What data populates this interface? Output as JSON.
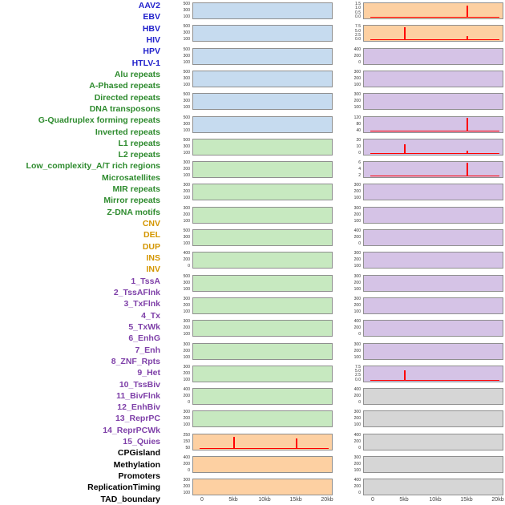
{
  "colors": {
    "virus_label": "#2222CC",
    "repeat_label": "#2E8B2E",
    "sv_label": "#D49600",
    "chromhmm_label": "#7E3FA8",
    "other_label": "#000000",
    "panel_blue": "#C6DBEF",
    "panel_green": "#C7E9C0",
    "panel_orange": "#FDD0A2",
    "panel_purple": "#D5C3E6",
    "panel_gray": "#D6D6D6",
    "panel_border": "#8F8F8F",
    "spike_red": "#FF0000",
    "axis_text": "#454545"
  },
  "track_labels": [
    {
      "text": "AAV2",
      "group": "virus"
    },
    {
      "text": "EBV",
      "group": "virus"
    },
    {
      "text": "HBV",
      "group": "virus"
    },
    {
      "text": "HIV",
      "group": "virus"
    },
    {
      "text": "HPV",
      "group": "virus"
    },
    {
      "text": "HTLV-1",
      "group": "virus"
    },
    {
      "text": "Alu repeats",
      "group": "repeat"
    },
    {
      "text": "A-Phased repeats",
      "group": "repeat"
    },
    {
      "text": "Directed repeats",
      "group": "repeat"
    },
    {
      "text": "DNA transposons",
      "group": "repeat"
    },
    {
      "text": "G-Quadruplex forming repeats",
      "group": "repeat"
    },
    {
      "text": "Inverted repeats",
      "group": "repeat"
    },
    {
      "text": "L1 repeats",
      "group": "repeat"
    },
    {
      "text": "L2 repeats",
      "group": "repeat"
    },
    {
      "text": "Low_complexity_A/T rich regions",
      "group": "repeat"
    },
    {
      "text": "Microsatellites",
      "group": "repeat"
    },
    {
      "text": "MIR repeats",
      "group": "repeat"
    },
    {
      "text": "Mirror repeats",
      "group": "repeat"
    },
    {
      "text": "Z-DNA motifs",
      "group": "repeat"
    },
    {
      "text": "CNV",
      "group": "sv"
    },
    {
      "text": "DEL",
      "group": "sv"
    },
    {
      "text": "DUP",
      "group": "sv"
    },
    {
      "text": "INS",
      "group": "sv"
    },
    {
      "text": "INV",
      "group": "sv"
    },
    {
      "text": "1_TssA",
      "group": "chromhmm"
    },
    {
      "text": "2_TssAFlnk",
      "group": "chromhmm"
    },
    {
      "text": "3_TxFlnk",
      "group": "chromhmm"
    },
    {
      "text": "4_Tx",
      "group": "chromhmm"
    },
    {
      "text": "5_TxWk",
      "group": "chromhmm"
    },
    {
      "text": "6_EnhG",
      "group": "chromhmm"
    },
    {
      "text": "7_Enh",
      "group": "chromhmm"
    },
    {
      "text": "8_ZNF_Rpts",
      "group": "chromhmm"
    },
    {
      "text": "9_Het",
      "group": "chromhmm"
    },
    {
      "text": "10_TssBiv",
      "group": "chromhmm"
    },
    {
      "text": "11_BivFlnk",
      "group": "chromhmm"
    },
    {
      "text": "12_EnhBiv",
      "group": "chromhmm"
    },
    {
      "text": "13_ReprPC",
      "group": "chromhmm"
    },
    {
      "text": "14_ReprPCWk",
      "group": "chromhmm"
    },
    {
      "text": "15_Quies",
      "group": "chromhmm"
    },
    {
      "text": "CPGisland",
      "group": "other"
    },
    {
      "text": "Methylation",
      "group": "other"
    },
    {
      "text": "Promoters",
      "group": "other"
    },
    {
      "text": "ReplicationTiming",
      "group": "other"
    },
    {
      "text": "TAD_boundary",
      "group": "other"
    }
  ],
  "chart_data": {
    "type": "area",
    "x": {
      "range_kb": [
        0,
        20
      ],
      "ticks": [
        "0",
        "5kb",
        "10kb",
        "15kb",
        "20kb"
      ],
      "tick_values_kb": [
        0,
        5,
        10,
        15,
        20
      ]
    },
    "columns": [
      {
        "id": "left",
        "panels": [
          {
            "track": "AAV2",
            "fill": "blue",
            "yticks": [
              "500",
              "300",
              "100"
            ],
            "spikes": []
          },
          {
            "track": "EBV",
            "fill": "blue",
            "yticks": [
              "500",
              "300",
              "100"
            ],
            "spikes": []
          },
          {
            "track": "HBV",
            "fill": "blue",
            "yticks": [
              "500",
              "300",
              "100"
            ],
            "spikes": []
          },
          {
            "track": "HIV",
            "fill": "blue",
            "yticks": [
              "500",
              "300",
              "100"
            ],
            "spikes": []
          },
          {
            "track": "HPV",
            "fill": "blue",
            "yticks": [
              "500",
              "300",
              "100"
            ],
            "spikes": []
          },
          {
            "track": "HTLV-1",
            "fill": "blue",
            "yticks": [
              "500",
              "300",
              "100"
            ],
            "spikes": []
          },
          {
            "track": "Alu repeats",
            "fill": "green",
            "yticks": [
              "500",
              "300",
              "100"
            ],
            "spikes": []
          },
          {
            "track": "A-Phased repeats",
            "fill": "green",
            "yticks": [
              "300",
              "200",
              "100"
            ],
            "spikes": []
          },
          {
            "track": "Directed repeats",
            "fill": "green",
            "yticks": [
              "300",
              "200",
              "100"
            ],
            "spikes": []
          },
          {
            "track": "DNA transposons",
            "fill": "green",
            "yticks": [
              "300",
              "200",
              "100"
            ],
            "spikes": []
          },
          {
            "track": "G-Quadruplex forming repeats",
            "fill": "green",
            "yticks": [
              "500",
              "300",
              "100"
            ],
            "spikes": []
          },
          {
            "track": "Inverted repeats",
            "fill": "green",
            "yticks": [
              "400",
              "200",
              "0"
            ],
            "spikes": []
          },
          {
            "track": "L1 repeats",
            "fill": "green",
            "yticks": [
              "500",
              "300",
              "100"
            ],
            "spikes": []
          },
          {
            "track": "L2 repeats",
            "fill": "green",
            "yticks": [
              "300",
              "200",
              "100"
            ],
            "spikes": []
          },
          {
            "track": "Low_complexity_A/T rich regions",
            "fill": "green",
            "yticks": [
              "300",
              "200",
              "100"
            ],
            "spikes": []
          },
          {
            "track": "Microsatellites",
            "fill": "green",
            "yticks": [
              "300",
              "200",
              "100"
            ],
            "spikes": []
          },
          {
            "track": "MIR repeats",
            "fill": "green",
            "yticks": [
              "300",
              "200",
              "100"
            ],
            "spikes": []
          },
          {
            "track": "Mirror repeats",
            "fill": "green",
            "yticks": [
              "400",
              "200",
              "0"
            ],
            "spikes": []
          },
          {
            "track": "Z-DNA motifs",
            "fill": "green",
            "yticks": [
              "300",
              "200",
              "100"
            ],
            "spikes": []
          },
          {
            "track": "CNV",
            "fill": "orange",
            "yticks": [
              "250",
              "150",
              "50"
            ],
            "spikes": [
              {
                "kb": 5,
                "frac": 0.75
              },
              {
                "kb": 15,
                "frac": 0.68
              }
            ]
          },
          {
            "track": "DEL",
            "fill": "orange",
            "yticks": [
              "400",
              "200",
              "0"
            ],
            "spikes": []
          },
          {
            "track": "DUP",
            "fill": "orange",
            "yticks": [
              "300",
              "200",
              "100"
            ],
            "spikes": []
          }
        ]
      },
      {
        "id": "right",
        "panels": [
          {
            "track": "INS",
            "fill": "orange",
            "yticks": [
              "1.5",
              "1.0",
              "0.5",
              "0.0"
            ],
            "spikes": [
              {
                "kb": 15,
                "frac": 0.8
              }
            ]
          },
          {
            "track": "INV",
            "fill": "orange",
            "yticks": [
              "7.5",
              "5.0",
              "2.5",
              "0.0"
            ],
            "spikes": [
              {
                "kb": 5,
                "frac": 0.88
              },
              {
                "kb": 15,
                "frac": 0.3
              }
            ]
          },
          {
            "track": "1_TssA",
            "fill": "purple",
            "yticks": [
              "400",
              "200",
              "0"
            ],
            "spikes": []
          },
          {
            "track": "2_TssAFlnk",
            "fill": "purple",
            "yticks": [
              "300",
              "200",
              "100"
            ],
            "spikes": []
          },
          {
            "track": "3_TxFlnk",
            "fill": "purple",
            "yticks": [
              "300",
              "200",
              "100"
            ],
            "spikes": []
          },
          {
            "track": "4_Tx",
            "fill": "purple",
            "yticks": [
              "120",
              "80",
              "40"
            ],
            "spikes": [
              {
                "kb": 15,
                "frac": 0.88
              }
            ]
          },
          {
            "track": "5_TxWk",
            "fill": "purple",
            "yticks": [
              "20",
              "10",
              "0"
            ],
            "spikes": [
              {
                "kb": 5,
                "frac": 0.6
              },
              {
                "kb": 15,
                "frac": 0.22
              }
            ]
          },
          {
            "track": "6_EnhG",
            "fill": "purple",
            "yticks": [
              "6",
              "4",
              "2"
            ],
            "spikes": [
              {
                "kb": 15,
                "frac": 0.88
              }
            ]
          },
          {
            "track": "7_Enh",
            "fill": "purple",
            "yticks": [
              "300",
              "200",
              "100"
            ],
            "spikes": []
          },
          {
            "track": "8_ZNF_Rpts",
            "fill": "purple",
            "yticks": [
              "300",
              "200",
              "100"
            ],
            "spikes": []
          },
          {
            "track": "9_Het",
            "fill": "purple",
            "yticks": [
              "400",
              "200",
              "0"
            ],
            "spikes": []
          },
          {
            "track": "10_TssBiv",
            "fill": "purple",
            "yticks": [
              "300",
              "200",
              "100"
            ],
            "spikes": []
          },
          {
            "track": "11_BivFlnk",
            "fill": "purple",
            "yticks": [
              "300",
              "200",
              "100"
            ],
            "spikes": []
          },
          {
            "track": "12_EnhBiv",
            "fill": "purple",
            "yticks": [
              "300",
              "200",
              "100"
            ],
            "spikes": []
          },
          {
            "track": "13_ReprPC",
            "fill": "purple",
            "yticks": [
              "400",
              "200",
              "0"
            ],
            "spikes": []
          },
          {
            "track": "14_ReprPCWk",
            "fill": "purple",
            "yticks": [
              "300",
              "200",
              "100"
            ],
            "spikes": []
          },
          {
            "track": "15_Quies",
            "fill": "purple",
            "yticks": [
              "7.5",
              "5.0",
              "2.5",
              "0.0"
            ],
            "spikes": [
              {
                "kb": 5,
                "frac": 0.68
              }
            ]
          },
          {
            "track": "CPGisland",
            "fill": "gray",
            "yticks": [
              "400",
              "200",
              "0"
            ],
            "spikes": []
          },
          {
            "track": "Methylation",
            "fill": "gray",
            "yticks": [
              "300",
              "200",
              "100"
            ],
            "spikes": []
          },
          {
            "track": "Promoters",
            "fill": "gray",
            "yticks": [
              "400",
              "200",
              "0"
            ],
            "spikes": []
          },
          {
            "track": "ReplicationTiming",
            "fill": "gray",
            "yticks": [
              "300",
              "200",
              "100"
            ],
            "spikes": []
          },
          {
            "track": "TAD_boundary",
            "fill": "gray",
            "yticks": [
              "400",
              "200",
              "0"
            ],
            "spikes": []
          }
        ]
      }
    ]
  }
}
